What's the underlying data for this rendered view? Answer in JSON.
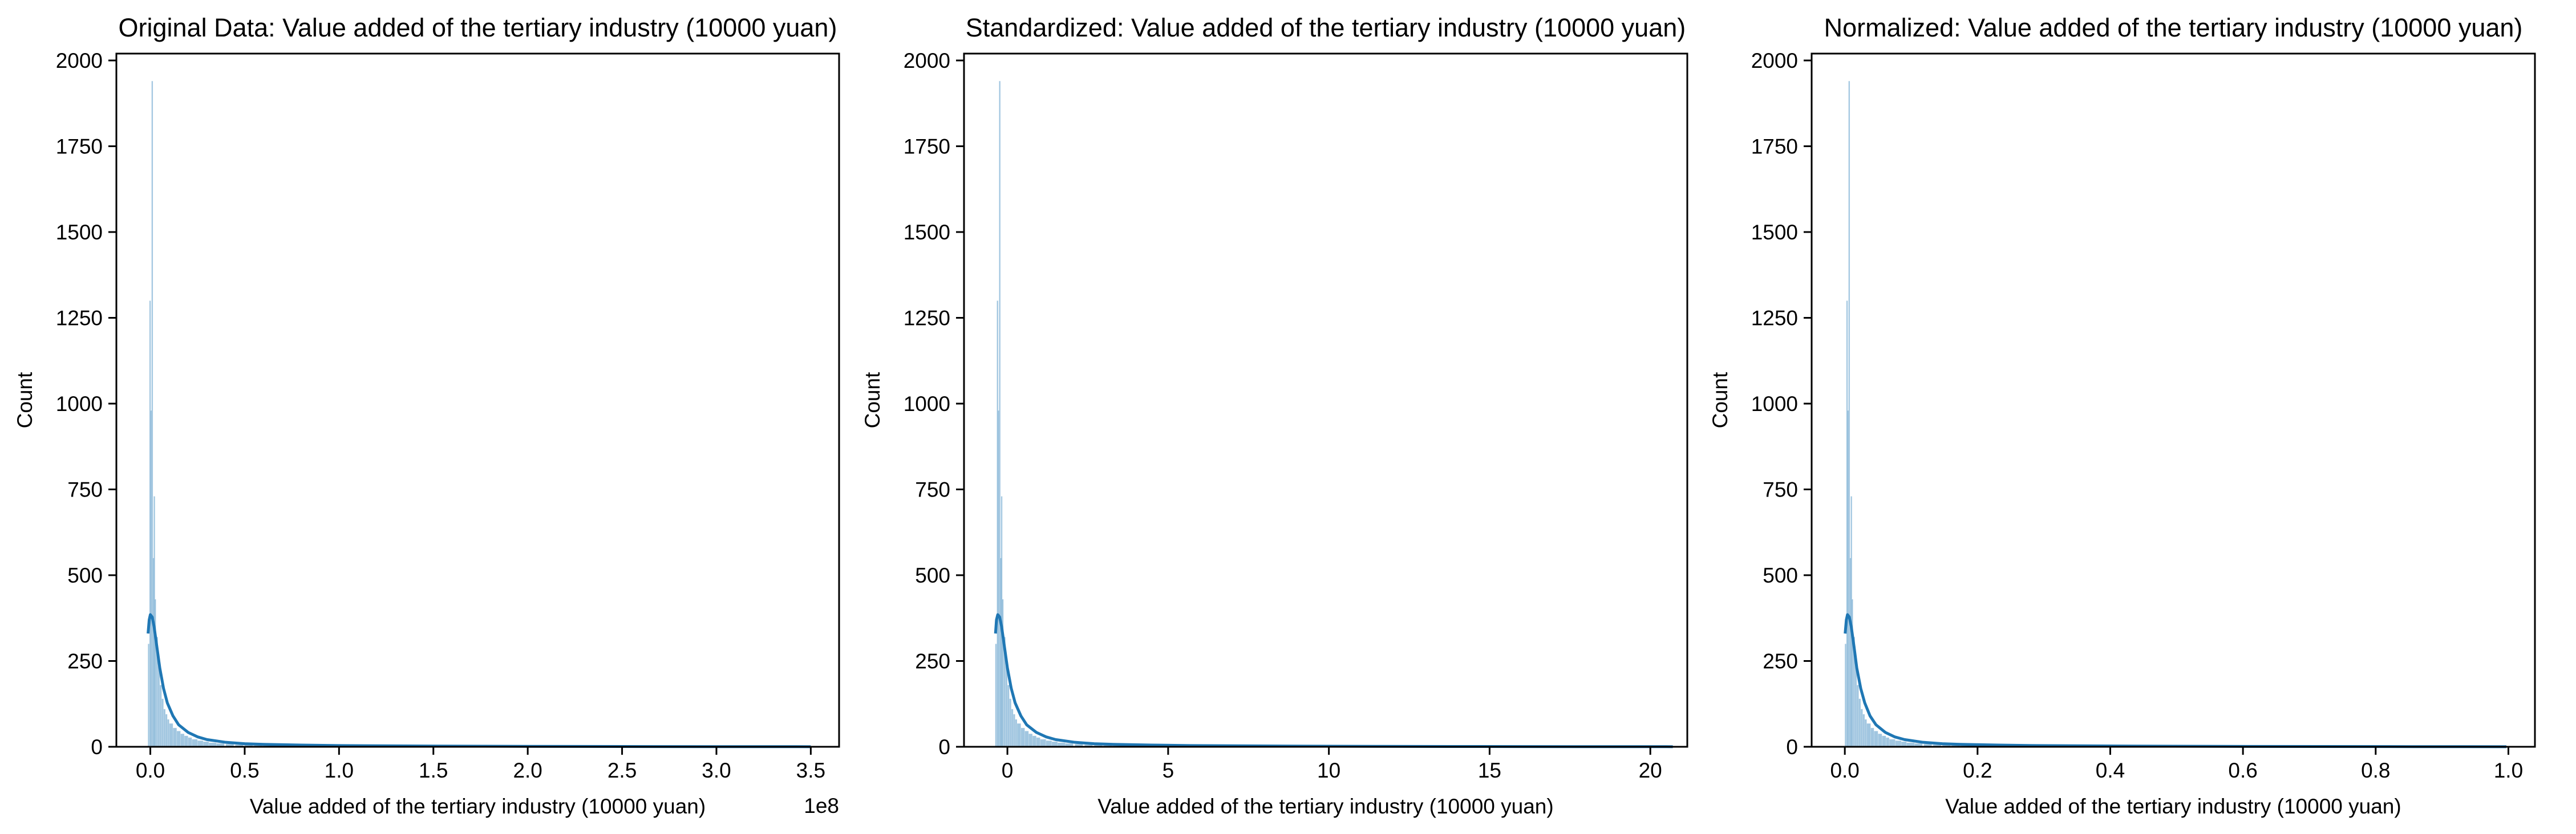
{
  "charts": [
    {
      "title": "Original Data: Value added of the tertiary industry (10000 yuan)",
      "xlabel": "Value added of the tertiary industry (10000 yuan)",
      "ylabel": "Count",
      "x_offset_text": "1e8",
      "x_ticks": [
        "0.0",
        "0.5",
        "1.0",
        "1.5",
        "2.0",
        "2.5",
        "3.0",
        "3.5"
      ],
      "y_ticks": [
        "0",
        "250",
        "500",
        "750",
        "1000",
        "1250",
        "1500",
        "1750",
        "2000"
      ]
    },
    {
      "title": "Standardized: Value added of the tertiary industry (10000 yuan)",
      "xlabel": "Value added of the tertiary industry (10000 yuan)",
      "ylabel": "Count",
      "x_offset_text": "",
      "x_ticks": [
        "0",
        "5",
        "10",
        "15",
        "20"
      ],
      "y_ticks": [
        "0",
        "250",
        "500",
        "750",
        "1000",
        "1250",
        "1500",
        "1750",
        "2000"
      ]
    },
    {
      "title": "Normalized: Value added of the tertiary industry (10000 yuan)",
      "xlabel": "Value added of the tertiary industry (10000 yuan)",
      "ylabel": "Count",
      "x_offset_text": "",
      "x_ticks": [
        "0.0",
        "0.2",
        "0.4",
        "0.6",
        "0.8",
        "1.0"
      ],
      "y_ticks": [
        "0",
        "250",
        "500",
        "750",
        "1000",
        "1250",
        "1500",
        "1750",
        "2000"
      ]
    }
  ],
  "chart_data": [
    {
      "type": "histogram",
      "title": "Original Data: Value added of the tertiary industry (10000 yuan)",
      "xlabel": "Value added of the tertiary industry (10000 yuan)",
      "ylabel": "Count",
      "x_scale_multiplier": 100000000,
      "xlim": [
        -0.18,
        3.65
      ],
      "ylim": [
        0,
        2020
      ],
      "x_ticks": [
        0.0,
        0.5,
        1.0,
        1.5,
        2.0,
        2.5,
        3.0,
        3.5
      ],
      "y_ticks": [
        0,
        250,
        500,
        750,
        1000,
        1250,
        1500,
        1750,
        2000
      ],
      "bins": [
        [
          -0.0129,
          300
        ],
        [
          -0.005,
          1300
        ],
        [
          0.0,
          980
        ],
        [
          0.0063,
          1940
        ],
        [
          0.0125,
          550
        ],
        [
          0.0175,
          730
        ],
        [
          0.0225,
          430
        ],
        [
          0.03,
          320
        ],
        [
          0.04,
          250
        ],
        [
          0.05,
          180
        ],
        [
          0.06,
          140
        ],
        [
          0.07,
          110
        ],
        [
          0.08,
          95
        ],
        [
          0.09,
          80
        ],
        [
          0.1,
          68
        ],
        [
          0.12,
          55
        ],
        [
          0.14,
          46
        ],
        [
          0.16,
          38
        ],
        [
          0.18,
          32
        ],
        [
          0.2,
          27
        ],
        [
          0.22,
          22
        ],
        [
          0.25,
          18
        ],
        [
          0.28,
          15
        ],
        [
          0.31,
          12
        ],
        [
          0.35,
          10
        ],
        [
          0.4,
          8
        ],
        [
          0.45,
          6
        ],
        [
          0.5,
          5
        ],
        [
          0.55,
          4
        ],
        [
          0.6,
          3
        ],
        [
          0.7,
          2
        ],
        [
          0.8,
          2
        ],
        [
          1.0,
          1
        ],
        [
          1.3,
          1
        ],
        [
          1.6,
          1
        ],
        [
          2.0,
          1
        ],
        [
          3.45,
          1
        ]
      ],
      "kde": [
        [
          -0.012,
          330
        ],
        [
          -0.006,
          370
        ],
        [
          0.0,
          385
        ],
        [
          0.01,
          378
        ],
        [
          0.02,
          350
        ],
        [
          0.035,
          290
        ],
        [
          0.05,
          230
        ],
        [
          0.07,
          170
        ],
        [
          0.09,
          128
        ],
        [
          0.12,
          90
        ],
        [
          0.15,
          64
        ],
        [
          0.2,
          42
        ],
        [
          0.25,
          29
        ],
        [
          0.3,
          21
        ],
        [
          0.4,
          13
        ],
        [
          0.5,
          9
        ],
        [
          0.6,
          7
        ],
        [
          0.8,
          5
        ],
        [
          1.0,
          3.5
        ],
        [
          1.5,
          2
        ],
        [
          2.0,
          1.2
        ],
        [
          2.5,
          0.8
        ],
        [
          3.0,
          0.5
        ],
        [
          3.5,
          0.3
        ]
      ],
      "grid": false,
      "color": "#1f77b4"
    },
    {
      "type": "histogram",
      "title": "Standardized: Value added of the tertiary industry (10000 yuan)",
      "xlabel": "Value added of the tertiary industry (10000 yuan)",
      "ylabel": "Count",
      "xlim": [
        -1.35,
        21.15
      ],
      "ylim": [
        0,
        2020
      ],
      "x_ticks": [
        0,
        5,
        10,
        15,
        20
      ],
      "y_ticks": [
        0,
        250,
        500,
        750,
        1000,
        1250,
        1500,
        1750,
        2000
      ],
      "bins": [
        [
          -0.38,
          300
        ],
        [
          -0.33,
          1300
        ],
        [
          -0.3,
          980
        ],
        [
          -0.26,
          1940
        ],
        [
          -0.23,
          550
        ],
        [
          -0.2,
          730
        ],
        [
          -0.17,
          430
        ],
        [
          -0.12,
          320
        ],
        [
          -0.06,
          250
        ],
        [
          0.0,
          180
        ],
        [
          0.06,
          140
        ],
        [
          0.12,
          110
        ],
        [
          0.18,
          95
        ],
        [
          0.24,
          80
        ],
        [
          0.3,
          68
        ],
        [
          0.42,
          55
        ],
        [
          0.54,
          46
        ],
        [
          0.66,
          38
        ],
        [
          0.78,
          32
        ],
        [
          0.9,
          27
        ],
        [
          1.02,
          22
        ],
        [
          1.2,
          18
        ],
        [
          1.38,
          15
        ],
        [
          1.56,
          12
        ],
        [
          1.8,
          10
        ],
        [
          2.1,
          8
        ],
        [
          2.4,
          6
        ],
        [
          2.7,
          5
        ],
        [
          3.0,
          4
        ],
        [
          3.3,
          3
        ],
        [
          3.9,
          2
        ],
        [
          4.5,
          2
        ],
        [
          5.7,
          1
        ],
        [
          7.5,
          1
        ],
        [
          9.3,
          1
        ],
        [
          11.7,
          1
        ],
        [
          20.3,
          1
        ]
      ],
      "kde": [
        [
          -0.37,
          330
        ],
        [
          -0.34,
          370
        ],
        [
          -0.3,
          385
        ],
        [
          -0.24,
          378
        ],
        [
          -0.18,
          350
        ],
        [
          -0.09,
          290
        ],
        [
          0.0,
          230
        ],
        [
          0.12,
          170
        ],
        [
          0.24,
          128
        ],
        [
          0.42,
          90
        ],
        [
          0.6,
          64
        ],
        [
          0.9,
          42
        ],
        [
          1.2,
          29
        ],
        [
          1.5,
          21
        ],
        [
          2.1,
          13
        ],
        [
          2.7,
          9
        ],
        [
          3.3,
          7
        ],
        [
          4.5,
          5
        ],
        [
          5.7,
          3.5
        ],
        [
          8.7,
          2
        ],
        [
          11.7,
          1.2
        ],
        [
          14.7,
          0.8
        ],
        [
          17.7,
          0.5
        ],
        [
          20.7,
          0.3
        ]
      ],
      "grid": false,
      "color": "#1f77b4"
    },
    {
      "type": "histogram",
      "title": "Normalized: Value added of the tertiary industry (10000 yuan)",
      "xlabel": "Value added of the tertiary industry (10000 yuan)",
      "ylabel": "Count",
      "xlim": [
        -0.05,
        1.04
      ],
      "ylim": [
        0,
        2020
      ],
      "x_ticks": [
        0.0,
        0.2,
        0.4,
        0.6,
        0.8,
        1.0
      ],
      "y_ticks": [
        0,
        250,
        500,
        750,
        1000,
        1250,
        1500,
        1750,
        2000
      ],
      "bins": [
        [
          0.0,
          300
        ],
        [
          0.0023,
          1300
        ],
        [
          0.0037,
          980
        ],
        [
          0.0055,
          1940
        ],
        [
          0.0073,
          550
        ],
        [
          0.0088,
          730
        ],
        [
          0.0102,
          430
        ],
        [
          0.0124,
          320
        ],
        [
          0.0152,
          250
        ],
        [
          0.018,
          180
        ],
        [
          0.021,
          140
        ],
        [
          0.024,
          110
        ],
        [
          0.027,
          95
        ],
        [
          0.03,
          80
        ],
        [
          0.033,
          68
        ],
        [
          0.039,
          55
        ],
        [
          0.044,
          46
        ],
        [
          0.05,
          38
        ],
        [
          0.056,
          32
        ],
        [
          0.062,
          27
        ],
        [
          0.067,
          22
        ],
        [
          0.076,
          18
        ],
        [
          0.085,
          15
        ],
        [
          0.093,
          12
        ],
        [
          0.105,
          10
        ],
        [
          0.119,
          8
        ],
        [
          0.133,
          6
        ],
        [
          0.147,
          5
        ],
        [
          0.161,
          4
        ],
        [
          0.175,
          3
        ],
        [
          0.204,
          2
        ],
        [
          0.232,
          2
        ],
        [
          0.289,
          1
        ],
        [
          0.374,
          1
        ],
        [
          0.459,
          1
        ],
        [
          0.572,
          1
        ],
        [
          0.983,
          1
        ]
      ],
      "kde": [
        [
          0.0005,
          330
        ],
        [
          0.0023,
          370
        ],
        [
          0.004,
          385
        ],
        [
          0.0068,
          378
        ],
        [
          0.0097,
          350
        ],
        [
          0.014,
          290
        ],
        [
          0.018,
          230
        ],
        [
          0.024,
          170
        ],
        [
          0.03,
          128
        ],
        [
          0.038,
          90
        ],
        [
          0.047,
          64
        ],
        [
          0.061,
          42
        ],
        [
          0.075,
          29
        ],
        [
          0.09,
          21
        ],
        [
          0.118,
          13
        ],
        [
          0.147,
          9
        ],
        [
          0.175,
          7
        ],
        [
          0.232,
          5
        ],
        [
          0.289,
          3.5
        ],
        [
          0.43,
          2
        ],
        [
          0.572,
          1.2
        ],
        [
          0.714,
          0.8
        ],
        [
          0.856,
          0.5
        ],
        [
          0.997,
          0.3
        ]
      ],
      "grid": false,
      "color": "#1f77b4"
    }
  ]
}
